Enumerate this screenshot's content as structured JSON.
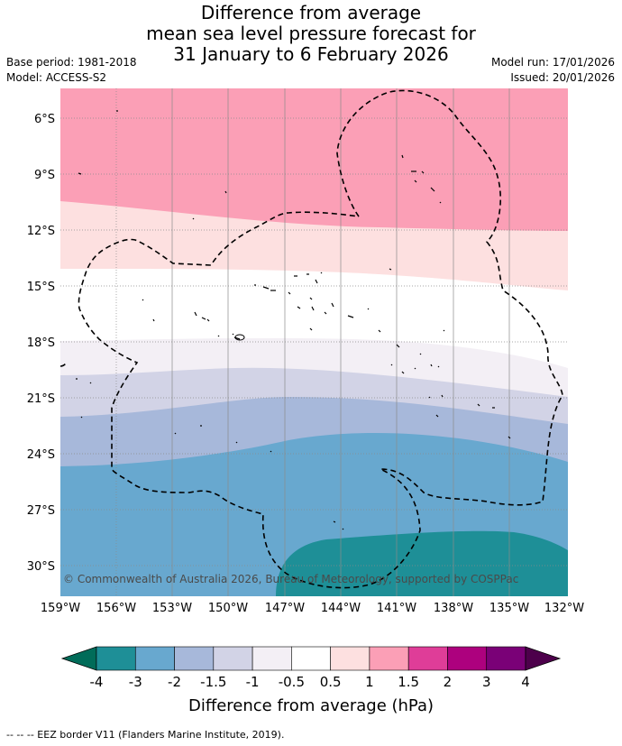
{
  "title": {
    "line1": "Difference from average",
    "line2": "mean sea level pressure forecast for",
    "line3": "31 January to 6 February 2026"
  },
  "meta": {
    "base_period": "Base period: 1981-2018",
    "model": "Model: ACCESS-S2",
    "model_run": "Model run: 17/01/2026",
    "issued": "Issued: 20/01/2026"
  },
  "map": {
    "lat_labels": [
      "6°S",
      "9°S",
      "12°S",
      "15°S",
      "18°S",
      "21°S",
      "24°S",
      "27°S",
      "30°S"
    ],
    "lon_labels": [
      "159°W",
      "156°W",
      "153°W",
      "150°W",
      "147°W",
      "144°W",
      "141°W",
      "138°W",
      "135°W",
      "132°W"
    ],
    "credit": "© Commonwealth of Australia 2026, Bureau of Meteorology, supported by COSPPac",
    "colors": {
      "band_1_to_1.5": "#fb9fb6",
      "band_0.5_to_1": "#fde0e0",
      "band_-0.5_to_0.5": "#ffffff",
      "band_-1_to_-0.5": "#f3eff5",
      "band_-1.5_to_-1": "#d2d3e6",
      "band_-2_to_-1.5": "#a7b8da",
      "band_-3_to_-2": "#68a8cf",
      "band_-4_to_-3": "#1e8f97"
    }
  },
  "colorbar": {
    "ticks": [
      "-4",
      "-3",
      "-2",
      "-1.5",
      "-1",
      "-0.5",
      "0.5",
      "1",
      "1.5",
      "2",
      "3",
      "4"
    ],
    "colors": [
      "#016c59",
      "#1e8f97",
      "#68a8cf",
      "#a7b8da",
      "#d2d3e6",
      "#f3eff5",
      "#ffffff",
      "#fde0e0",
      "#fb9fb6",
      "#df3d98",
      "#ad017e",
      "#7a0177",
      "#4d004b"
    ],
    "label": "Difference from average (hPa)"
  },
  "footer": "--  --  -- EEZ border V11 (Flanders Marine Institute, 2019)."
}
